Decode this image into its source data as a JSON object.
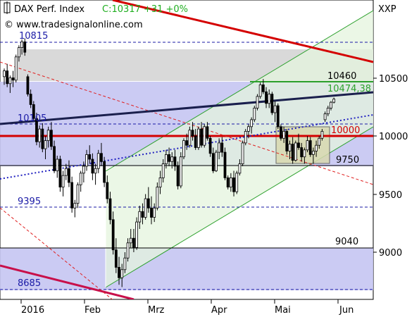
{
  "header": {
    "title": "DAX Perf. Index",
    "quote": "C:10317 +31 +0%",
    "watermark": "© www.tradesignalonline.com",
    "symbol": "XXP"
  },
  "colors": {
    "up": "#ffffff",
    "down": "#000000",
    "green_band": "#2ca02c",
    "red_line": "#d40000",
    "navy_line": "#1a1f4d",
    "blue_text": "#1a1aa6",
    "zone_blue": "#c5c5f2",
    "zone_gray": "#d9d9d9",
    "channel_fill": "#e4f4dd"
  },
  "chart_data": {
    "type": "candlestick",
    "x_labels": [
      "2016",
      "Feb",
      "Mrz",
      "Apr",
      "Mai",
      "Jun"
    ],
    "y_ticks": [
      "9000",
      "9500",
      "10000",
      "10500"
    ],
    "levels": [
      {
        "value": "10815",
        "color": "blue"
      },
      {
        "value": "10460",
        "color": "black"
      },
      {
        "value": "10474,38",
        "color": "green"
      },
      {
        "value": "10105",
        "color": "blue"
      },
      {
        "value": "10000",
        "color": "red"
      },
      {
        "value": "9750",
        "color": "black"
      },
      {
        "value": "9395",
        "color": "blue"
      },
      {
        "value": "9040",
        "color": "black"
      },
      {
        "value": "8685",
        "color": "blue"
      }
    ],
    "candles": [
      [
        10510,
        10580,
        10440,
        10560
      ],
      [
        10560,
        10620,
        10420,
        10450
      ],
      [
        10450,
        10520,
        10370,
        10500
      ],
      [
        10500,
        10560,
        10420,
        10480
      ],
      [
        10480,
        10700,
        10460,
        10680
      ],
      [
        10680,
        10780,
        10640,
        10760
      ],
      [
        10760,
        10830,
        10700,
        10810
      ],
      [
        10810,
        10840,
        10690,
        10720
      ],
      [
        10510,
        10530,
        10340,
        10360
      ],
      [
        10360,
        10400,
        10240,
        10270
      ],
      [
        10270,
        10300,
        10130,
        10150
      ],
      [
        10150,
        10200,
        9920,
        9950
      ],
      [
        9950,
        10090,
        9900,
        10060
      ],
      [
        10060,
        10110,
        9860,
        9890
      ],
      [
        9890,
        10000,
        9800,
        9960
      ],
      [
        9960,
        10080,
        9900,
        10050
      ],
      [
        10050,
        10120,
        9880,
        9910
      ],
      [
        9910,
        9960,
        9680,
        9700
      ],
      [
        9700,
        9830,
        9640,
        9800
      ],
      [
        9800,
        9830,
        9520,
        9560
      ],
      [
        9560,
        9700,
        9480,
        9660
      ],
      [
        9660,
        9760,
        9620,
        9720
      ],
      [
        9720,
        9790,
        9560,
        9600
      ],
      [
        9600,
        9650,
        9340,
        9380
      ],
      [
        9380,
        9450,
        9300,
        9420
      ],
      [
        9420,
        9600,
        9380,
        9580
      ],
      [
        9580,
        9700,
        9520,
        9680
      ],
      [
        9680,
        9780,
        9600,
        9740
      ],
      [
        9740,
        9880,
        9700,
        9840
      ],
      [
        9840,
        9920,
        9760,
        9800
      ],
      [
        9800,
        9850,
        9620,
        9680
      ],
      [
        9680,
        9760,
        9580,
        9720
      ],
      [
        9720,
        9880,
        9680,
        9850
      ],
      [
        9850,
        9940,
        9740,
        9780
      ],
      [
        9780,
        9820,
        9560,
        9600
      ],
      [
        9600,
        9660,
        9420,
        9460
      ],
      [
        9460,
        9520,
        9240,
        9280
      ],
      [
        9280,
        9350,
        8980,
        9020
      ],
      [
        9020,
        9120,
        8820,
        8870
      ],
      [
        8870,
        8960,
        8720,
        8780
      ],
      [
        8780,
        8900,
        8700,
        8850
      ],
      [
        8850,
        9000,
        8820,
        8950
      ],
      [
        8950,
        9120,
        8920,
        9080
      ],
      [
        9080,
        9200,
        9040,
        9120
      ],
      [
        9120,
        9200,
        9000,
        9040
      ],
      [
        9040,
        9300,
        9020,
        9260
      ],
      [
        9260,
        9400,
        9200,
        9350
      ],
      [
        9350,
        9420,
        9240,
        9300
      ],
      [
        9300,
        9500,
        9280,
        9460
      ],
      [
        9460,
        9560,
        9340,
        9380
      ],
      [
        9380,
        9480,
        9240,
        9300
      ],
      [
        9300,
        9420,
        9260,
        9380
      ],
      [
        9380,
        9600,
        9360,
        9560
      ],
      [
        9560,
        9700,
        9500,
        9640
      ],
      [
        9640,
        9800,
        9600,
        9760
      ],
      [
        9760,
        9880,
        9720,
        9840
      ],
      [
        9840,
        9900,
        9740,
        9780
      ],
      [
        9780,
        9860,
        9720,
        9820
      ],
      [
        9820,
        9880,
        9700,
        9740
      ],
      [
        9740,
        9780,
        9540,
        9570
      ],
      [
        9570,
        9860,
        9550,
        9820
      ],
      [
        9820,
        9980,
        9800,
        9960
      ],
      [
        9960,
        10020,
        9880,
        9920
      ],
      [
        9920,
        10080,
        9900,
        10050
      ],
      [
        10050,
        10120,
        9960,
        10000
      ],
      [
        10000,
        10060,
        9880,
        9900
      ],
      [
        9900,
        10080,
        9880,
        10060
      ],
      [
        10060,
        10120,
        9900,
        9920
      ],
      [
        9920,
        10100,
        9900,
        10080
      ],
      [
        10080,
        10120,
        9960,
        9980
      ],
      [
        9980,
        10000,
        9820,
        9850
      ],
      [
        9850,
        9900,
        9680,
        9700
      ],
      [
        9700,
        9880,
        9690,
        9860
      ],
      [
        9860,
        9980,
        9800,
        9940
      ],
      [
        9940,
        9990,
        9820,
        9860
      ],
      [
        9860,
        9900,
        9620,
        9640
      ],
      [
        9640,
        9660,
        9540,
        9560
      ],
      [
        9560,
        9680,
        9520,
        9640
      ],
      [
        9640,
        9700,
        9480,
        9520
      ],
      [
        9520,
        9700,
        9500,
        9680
      ],
      [
        9680,
        9800,
        9660,
        9760
      ],
      [
        9760,
        9960,
        9740,
        9940
      ],
      [
        9940,
        10060,
        9920,
        10040
      ],
      [
        10040,
        10100,
        9980,
        10080
      ],
      [
        10080,
        10160,
        10020,
        10140
      ],
      [
        10140,
        10260,
        10120,
        10240
      ],
      [
        10240,
        10360,
        10220,
        10340
      ],
      [
        10340,
        10460,
        10320,
        10440
      ],
      [
        10440,
        10490,
        10360,
        10380
      ],
      [
        10380,
        10420,
        10240,
        10280
      ],
      [
        10280,
        10400,
        10240,
        10360
      ],
      [
        10360,
        10380,
        10180,
        10200
      ],
      [
        10200,
        10300,
        10120,
        10260
      ],
      [
        10260,
        10280,
        10060,
        10080
      ],
      [
        10080,
        10100,
        9960,
        9980
      ],
      [
        9980,
        10080,
        9940,
        10040
      ],
      [
        10040,
        10060,
        9840,
        9870
      ],
      [
        9870,
        9960,
        9800,
        9930
      ],
      [
        9930,
        9990,
        9760,
        9790
      ],
      [
        9790,
        9960,
        9780,
        9940
      ],
      [
        9940,
        10020,
        9880,
        9900
      ],
      [
        9900,
        9940,
        9780,
        9820
      ],
      [
        9820,
        9900,
        9760,
        9880
      ],
      [
        9880,
        10000,
        9860,
        9960
      ],
      [
        9960,
        9990,
        9820,
        9840
      ],
      [
        9840,
        9900,
        9760,
        9870
      ],
      [
        9870,
        9960,
        9820,
        9920
      ],
      [
        9920,
        10000,
        9890,
        9980
      ],
      [
        9980,
        10060,
        9960,
        10040
      ],
      [
        10140,
        10210,
        10120,
        10190
      ],
      [
        10190,
        10260,
        10170,
        10240
      ],
      [
        10240,
        10300,
        10220,
        10290
      ],
      [
        10290,
        10330,
        10280,
        10317
      ]
    ]
  }
}
